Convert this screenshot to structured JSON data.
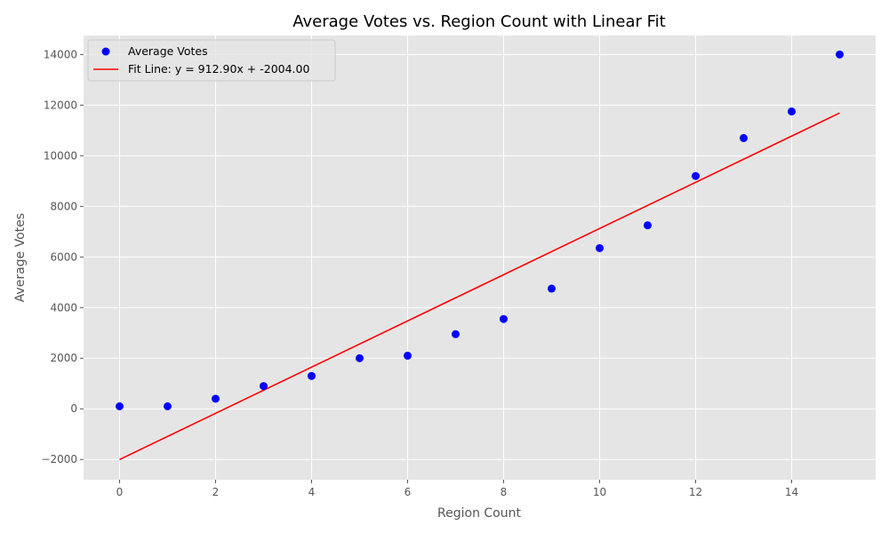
{
  "chart_data": {
    "type": "scatter",
    "title": "Average Votes vs. Region Count with Linear Fit",
    "xlabel": "Region Count",
    "ylabel": "Average Votes",
    "xlim": [
      -0.75,
      15.75
    ],
    "ylim": [
      -2800,
      14750
    ],
    "xticks": [
      0,
      2,
      4,
      6,
      8,
      10,
      12,
      14
    ],
    "yticks": [
      -2000,
      0,
      2000,
      4000,
      6000,
      8000,
      10000,
      12000,
      14000
    ],
    "xtick_labels": [
      "0",
      "2",
      "4",
      "6",
      "8",
      "10",
      "12",
      "14"
    ],
    "ytick_labels": [
      "−2000",
      "0",
      "2000",
      "4000",
      "6000",
      "8000",
      "10000",
      "12000",
      "14000"
    ],
    "grid": true,
    "legend_position": "top-left",
    "series": [
      {
        "name": "Average Votes",
        "kind": "scatter",
        "color": "#0000ff",
        "x": [
          0,
          1,
          2,
          3,
          4,
          5,
          6,
          7,
          8,
          9,
          10,
          11,
          12,
          13,
          14,
          15
        ],
        "y": [
          100,
          100,
          400,
          900,
          1300,
          2000,
          2100,
          2950,
          3550,
          4750,
          6350,
          7250,
          9200,
          10700,
          11750,
          14000
        ]
      },
      {
        "name": "Fit Line: y = 912.90x + -2004.00",
        "kind": "line",
        "color": "#ff0000",
        "slope": 912.9,
        "intercept": -2004.0,
        "x_range": [
          0,
          15
        ]
      }
    ]
  }
}
